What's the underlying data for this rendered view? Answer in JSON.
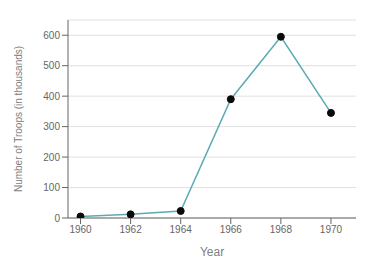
{
  "chart_data": {
    "type": "line",
    "x": [
      1960,
      1962,
      1964,
      1966,
      1968,
      1970
    ],
    "values": [
      5,
      12,
      23,
      390,
      595,
      345
    ],
    "color": "#5baab5",
    "colors": [
      "#0a0a0a",
      "#0a0a0a",
      "#0a0a0a",
      "#0a0a0a",
      "#0a0a0a",
      "#0a0a0a"
    ],
    "marker": "circle",
    "xlabel": "Year",
    "ylabel": "Number of Troops (in thousands)",
    "xlim": [
      1959.5,
      1971
    ],
    "ylim": [
      0,
      650
    ],
    "xticks": [
      1960,
      1962,
      1964,
      1966,
      1968,
      1970
    ],
    "yticks": [
      0,
      100,
      200,
      300,
      400,
      500,
      600
    ],
    "grid": true
  }
}
